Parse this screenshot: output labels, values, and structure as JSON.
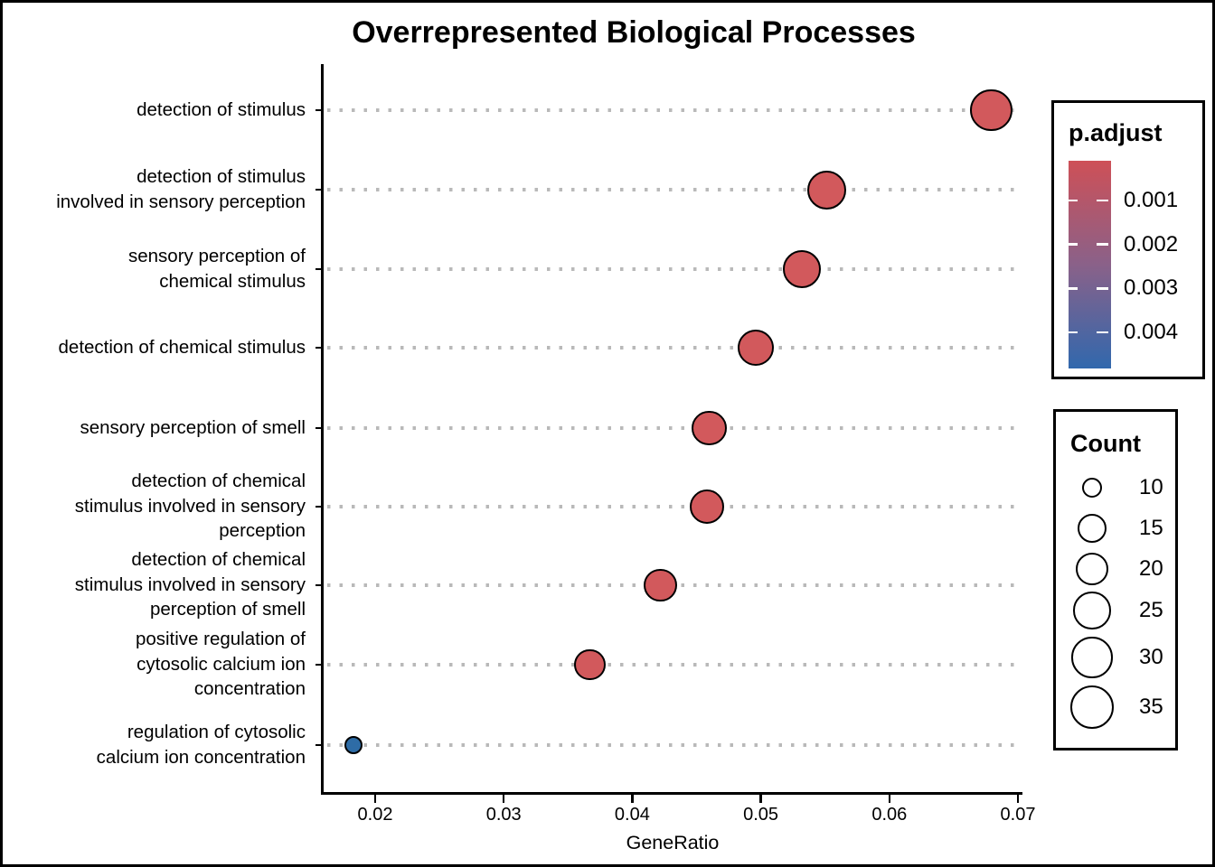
{
  "chart_data": {
    "type": "scatter",
    "title": "Overrepresented Biological Processes",
    "xlabel": "GeneRatio",
    "ylabel": "",
    "x_ticks": [
      "0.02",
      "0.03",
      "0.04",
      "0.05",
      "0.06",
      "0.07"
    ],
    "x_tick_values": [
      0.02,
      0.03,
      0.04,
      0.05,
      0.06,
      0.07
    ],
    "xlim": [
      0.016,
      0.0705
    ],
    "grid": "dotted horizontal lines per category",
    "legend_position": "right",
    "points": [
      {
        "label": "detection of stimulus",
        "label_lines": [
          "detection of stimulus"
        ],
        "gene_ratio": 0.0679,
        "count": 33,
        "p_adjust": 0.0001,
        "color": "#D2595C"
      },
      {
        "label": "detection of stimulus involved in sensory perception",
        "label_lines": [
          "detection of stimulus",
          "involved in sensory perception"
        ],
        "gene_ratio": 0.0551,
        "count": 27,
        "p_adjust": 0.0001,
        "color": "#D2595C"
      },
      {
        "label": "sensory perception of chemical stimulus",
        "label_lines": [
          "sensory perception of",
          "chemical stimulus"
        ],
        "gene_ratio": 0.0532,
        "count": 26,
        "p_adjust": 0.0001,
        "color": "#D2595C"
      },
      {
        "label": "detection of chemical stimulus",
        "label_lines": [
          "detection of chemical stimulus"
        ],
        "gene_ratio": 0.0496,
        "count": 24,
        "p_adjust": 0.0001,
        "color": "#D2595C"
      },
      {
        "label": "sensory perception of smell",
        "label_lines": [
          "sensory perception of smell"
        ],
        "gene_ratio": 0.046,
        "count": 22,
        "p_adjust": 0.0001,
        "color": "#D2595C"
      },
      {
        "label": "detection of chemical stimulus involved in sensory perception",
        "label_lines": [
          "detection of chemical",
          "stimulus involved in sensory",
          "perception"
        ],
        "gene_ratio": 0.0458,
        "count": 22,
        "p_adjust": 0.0001,
        "color": "#D2595C"
      },
      {
        "label": "detection of chemical stimulus involved in sensory perception of smell",
        "label_lines": [
          "detection of chemical",
          "stimulus involved in sensory",
          "perception of smell"
        ],
        "gene_ratio": 0.0422,
        "count": 20,
        "p_adjust": 0.0001,
        "color": "#D2595C"
      },
      {
        "label": "positive regulation of cytosolic calcium ion concentration",
        "label_lines": [
          "positive regulation of",
          "cytosolic calcium ion",
          "concentration"
        ],
        "gene_ratio": 0.0367,
        "count": 18,
        "p_adjust": 0.0001,
        "color": "#D2595C"
      },
      {
        "label": "regulation of cytosolic calcium ion concentration",
        "label_lines": [
          "regulation of cytosolic",
          "calcium ion concentration"
        ],
        "gene_ratio": 0.0183,
        "count": 9,
        "p_adjust": 0.0045,
        "color": "#2E6CA6"
      }
    ],
    "color_legend": {
      "title": "p.adjust",
      "tick_labels": [
        "0.001",
        "0.002",
        "0.003",
        "0.004"
      ],
      "tick_values": [
        0.001,
        0.002,
        0.003,
        0.004
      ],
      "low_color": "#CE5057",
      "mid_color": "#8A6189",
      "high_color": "#3168AD",
      "value_at_bar_top": 3e-05,
      "value_at_bar_bottom": 0.00476
    },
    "size_legend": {
      "title": "Count",
      "entries": [
        "10",
        "15",
        "20",
        "25",
        "30",
        "35"
      ],
      "entry_values": [
        10,
        15,
        20,
        25,
        30,
        35
      ]
    }
  }
}
